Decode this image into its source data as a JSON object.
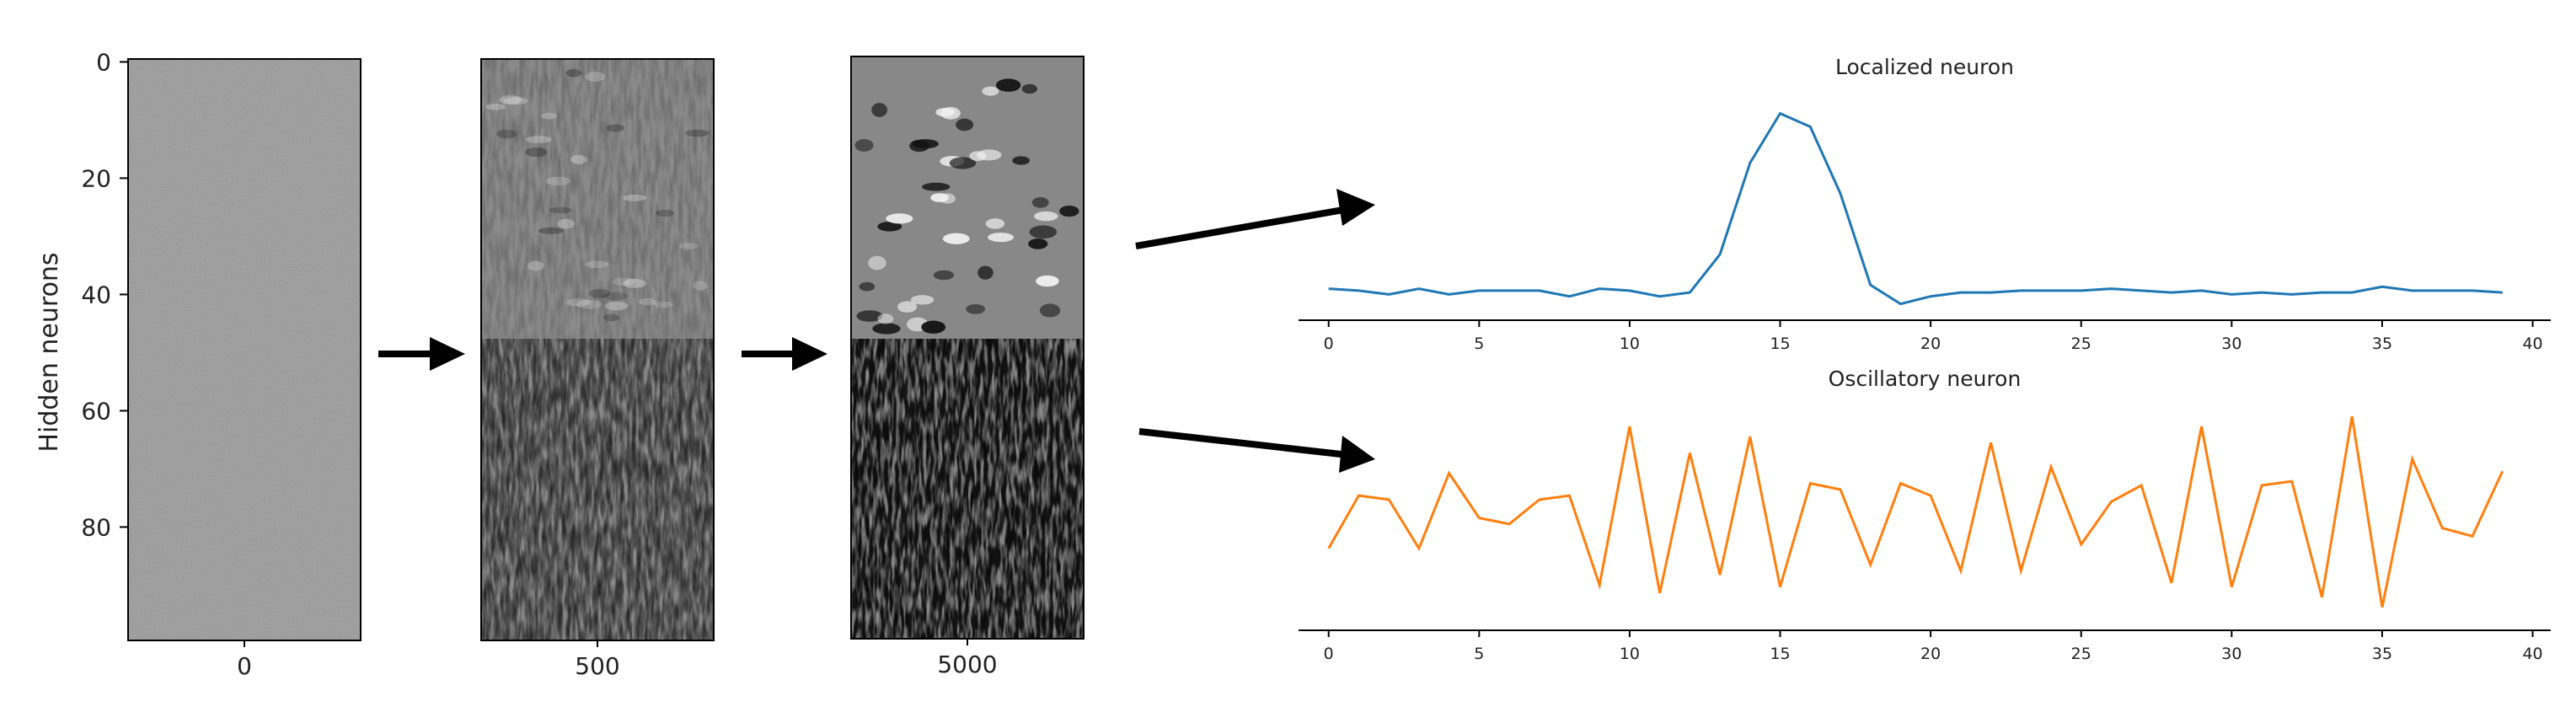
{
  "heatmaps": {
    "ylabel": "Hidden neurons",
    "yticks": [
      "0",
      "20",
      "40",
      "60",
      "80"
    ],
    "ytick_values": [
      0,
      20,
      40,
      60,
      80
    ],
    "rows": 100,
    "localized_rows": 48,
    "panels": [
      {
        "label": "0"
      },
      {
        "label": "500"
      },
      {
        "label": "5000"
      }
    ]
  },
  "chart_data": [
    {
      "type": "line",
      "title": "Localized neuron",
      "color": "#1f77b4",
      "x": [
        0,
        1,
        2,
        3,
        4,
        5,
        6,
        7,
        8,
        9,
        10,
        11,
        12,
        13,
        14,
        15,
        16,
        17,
        18,
        19,
        20,
        21,
        22,
        23,
        24,
        25,
        26,
        27,
        28,
        29,
        30,
        31,
        32,
        33,
        34,
        35,
        36,
        37,
        38,
        39
      ],
      "y": [
        0.08,
        0.07,
        0.05,
        0.08,
        0.05,
        0.07,
        0.07,
        0.07,
        0.04,
        0.08,
        0.07,
        0.04,
        0.06,
        0.26,
        0.74,
        1.0,
        0.93,
        0.58,
        0.1,
        0.0,
        0.04,
        0.06,
        0.06,
        0.07,
        0.07,
        0.07,
        0.08,
        0.07,
        0.06,
        0.07,
        0.05,
        0.06,
        0.05,
        0.06,
        0.06,
        0.09,
        0.07,
        0.07,
        0.07,
        0.06
      ],
      "xticks": [
        "0",
        "5",
        "10",
        "15",
        "20",
        "25",
        "30",
        "35",
        "40"
      ],
      "xtick_values": [
        0,
        5,
        10,
        15,
        20,
        25,
        30,
        35,
        40
      ],
      "xlim": [
        -1,
        40.6
      ],
      "ylim": [
        -0.05,
        1.1
      ]
    },
    {
      "type": "line",
      "title": "Oscillatory neuron",
      "color": "#ff7f0e",
      "x": [
        0,
        1,
        2,
        3,
        4,
        5,
        6,
        7,
        8,
        9,
        10,
        11,
        12,
        13,
        14,
        15,
        16,
        17,
        18,
        19,
        20,
        21,
        22,
        23,
        24,
        25,
        26,
        27,
        28,
        29,
        30,
        31,
        32,
        33,
        34,
        35,
        36,
        37,
        38,
        39
      ],
      "y": [
        0.32,
        0.58,
        0.56,
        0.32,
        0.69,
        0.47,
        0.44,
        0.56,
        0.58,
        0.14,
        0.92,
        0.1,
        0.79,
        0.19,
        0.87,
        0.13,
        0.64,
        0.61,
        0.24,
        0.64,
        0.58,
        0.21,
        0.84,
        0.21,
        0.72,
        0.34,
        0.55,
        0.63,
        0.15,
        0.92,
        0.13,
        0.63,
        0.65,
        0.08,
        0.97,
        0.03,
        0.76,
        0.42,
        0.38,
        0.7
      ],
      "xticks": [
        "0",
        "5",
        "10",
        "15",
        "20",
        "25",
        "30",
        "35",
        "40"
      ],
      "xtick_values": [
        0,
        5,
        10,
        15,
        20,
        25,
        30,
        35,
        40
      ],
      "xlim": [
        -1,
        40.6
      ],
      "ylim": [
        -0.05,
        1.02
      ]
    }
  ]
}
